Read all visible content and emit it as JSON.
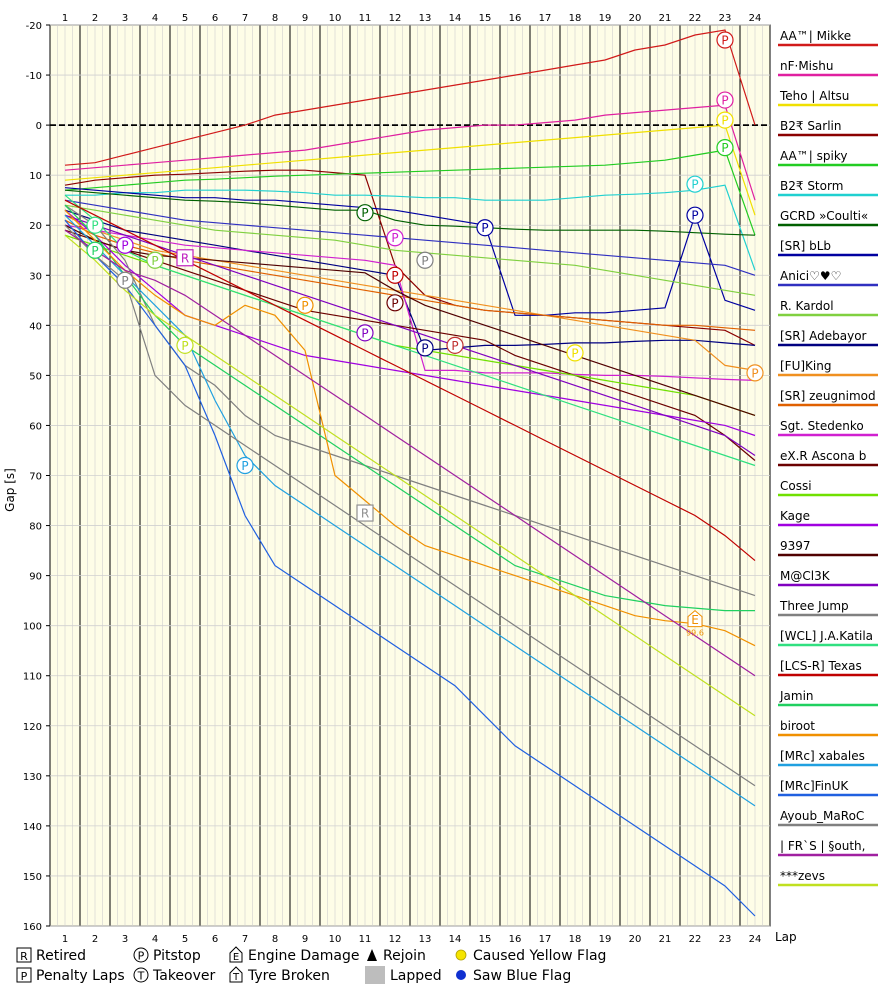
{
  "chart_data": {
    "type": "line",
    "title": "",
    "xlabel": "Lap",
    "ylabel": "Gap [s]",
    "x": [
      1,
      2,
      3,
      4,
      5,
      6,
      7,
      8,
      9,
      10,
      11,
      12,
      13,
      14,
      15,
      16,
      17,
      18,
      19,
      20,
      21,
      22,
      23,
      24
    ],
    "x_ticks": [
      "1",
      "2",
      "3",
      "4",
      "5",
      "6",
      "7",
      "8",
      "9",
      "10",
      "11",
      "12",
      "13",
      "14",
      "15",
      "16",
      "17",
      "18",
      "19",
      "20",
      "21",
      "22",
      "23",
      "24"
    ],
    "ylim": [
      -20,
      160
    ],
    "y_ticks": [
      "-20",
      "-10",
      "0",
      "10",
      "20",
      "30",
      "40",
      "50",
      "60",
      "70",
      "80",
      "90",
      "100",
      "110",
      "120",
      "130",
      "140",
      "150",
      "160"
    ],
    "series": [
      {
        "name": "AA™| Mikke",
        "color": "#d11a1a",
        "values": [
          8,
          7.5,
          6,
          4.5,
          3,
          1.5,
          0,
          -2,
          -3,
          -4,
          -5,
          -6,
          -7,
          -8,
          -9,
          -10,
          -11,
          -12,
          -13,
          -15,
          -16,
          -18,
          -19,
          0
        ]
      },
      {
        "name": "nF·Mishu",
        "color": "#e020a0",
        "values": [
          9,
          8.5,
          8,
          7.5,
          7,
          6.5,
          6,
          5.5,
          5,
          4,
          3,
          2,
          1,
          0.5,
          0,
          0,
          -0.5,
          -1,
          -2,
          -2.5,
          -3,
          -3.5,
          -4,
          15
        ]
      },
      {
        "name": "Teho | Altsu",
        "color": "#f0e000",
        "values": [
          11,
          10.5,
          10,
          9.5,
          9,
          8.5,
          8,
          7.5,
          7,
          6.5,
          6,
          5.5,
          5,
          4.5,
          4,
          3.5,
          3,
          2.5,
          2,
          1.5,
          1,
          0.5,
          0,
          18
        ]
      },
      {
        "name": "B2₹ Sarlin",
        "color": "#8b0000",
        "values": [
          12,
          11,
          10.5,
          10,
          9.8,
          9.5,
          9.2,
          9,
          9,
          9.5,
          10,
          28,
          34,
          36,
          37,
          37.5,
          38,
          38.5,
          39,
          39.5,
          40,
          40.5,
          41,
          44
        ]
      },
      {
        "name": "AA™| spiky",
        "color": "#22cc22",
        "values": [
          13,
          12.5,
          12,
          11.5,
          11,
          10.8,
          10.5,
          10.2,
          10,
          9.8,
          9.6,
          9.4,
          9.2,
          9,
          8.8,
          8.6,
          8.4,
          8.2,
          8,
          7.5,
          7,
          6,
          5,
          22
        ]
      },
      {
        "name": "B2₹ Storm",
        "color": "#20d0d0",
        "values": [
          14,
          14,
          13.5,
          13.5,
          13,
          13,
          13,
          13.2,
          13.5,
          14,
          14,
          14.2,
          14.5,
          14.5,
          15,
          15,
          15,
          14.5,
          14,
          13.8,
          13.5,
          13,
          12,
          29
        ]
      },
      {
        "name": "GCRD »Coulti«",
        "color": "#006000",
        "values": [
          13,
          13.5,
          14,
          14.5,
          15,
          15.2,
          15.5,
          16,
          16.5,
          17,
          17,
          19,
          20,
          20.2,
          20.5,
          20.8,
          21,
          21,
          21,
          21,
          21.2,
          21.5,
          21.8,
          22
        ]
      },
      {
        "name": "[SR] bLb",
        "color": "#0000a0",
        "values": [
          12.5,
          13,
          13.5,
          14,
          14.5,
          14.5,
          15,
          15,
          15.5,
          16,
          16.5,
          17,
          18,
          19,
          20,
          38,
          38,
          37.5,
          37.5,
          37,
          36.5,
          18,
          35,
          37
        ]
      },
      {
        "name": "Anici♡♥♡",
        "color": "#3030c0",
        "values": [
          15,
          16,
          17,
          18,
          19,
          19.5,
          20,
          20.5,
          21,
          21.5,
          22,
          22.5,
          23,
          23.5,
          24,
          24.5,
          25,
          25.5,
          26,
          26.5,
          27,
          27.5,
          28,
          30
        ]
      },
      {
        "name": "R. Kardol",
        "color": "#80d040",
        "values": [
          16,
          17,
          18,
          19,
          20,
          21,
          21.5,
          22,
          22.5,
          23,
          24,
          25,
          25.5,
          26,
          26.5,
          27,
          27.5,
          28,
          29,
          30,
          31,
          32,
          33,
          34
        ]
      },
      {
        "name": "[SR] Adebayor",
        "color": "#000080",
        "values": [
          17,
          19,
          21,
          22,
          23,
          24,
          25,
          26,
          27,
          28,
          29,
          30,
          45,
          44.5,
          44,
          44,
          43.8,
          43.5,
          43.5,
          43.2,
          43,
          43,
          43.5,
          44
        ]
      },
      {
        "name": "[FU]King",
        "color": "#f09020",
        "values": [
          18,
          21,
          23,
          25,
          26,
          27,
          28,
          29,
          30,
          31,
          32,
          33,
          34,
          35,
          36,
          37,
          38,
          39,
          40,
          41,
          42,
          43,
          48,
          49
        ]
      },
      {
        "name": "[SR] zeugnimod",
        "color": "#e06000",
        "values": [
          19,
          22,
          24,
          25.5,
          27,
          28,
          29,
          30,
          31,
          32,
          33,
          34,
          35,
          36,
          37,
          37.5,
          38,
          38.5,
          39,
          39.5,
          40,
          40,
          40.5,
          41
        ]
      },
      {
        "name": "Sgt. Stedenko",
        "color": "#d020d0",
        "values": [
          20,
          21,
          22,
          23,
          24,
          24.5,
          25,
          25.5,
          26,
          26.5,
          27,
          28,
          49,
          49,
          49.5,
          49.5,
          49.5,
          49.8,
          50,
          50,
          50.2,
          50.5,
          50.8,
          51
        ]
      },
      {
        "name": "eX.R Ascona b",
        "color": "#6b0000",
        "values": [
          21,
          23,
          25,
          27,
          29,
          31,
          33,
          35,
          37,
          38,
          39,
          40,
          41,
          42,
          43,
          46,
          48,
          50,
          52,
          54,
          56,
          58,
          62,
          67
        ]
      },
      {
        "name": "Cossi",
        "color": "#70e000",
        "values": [
          22,
          24,
          26,
          28,
          30,
          32,
          34,
          36,
          38,
          40,
          42,
          44,
          45,
          46,
          47,
          48,
          49,
          50,
          51,
          52,
          53,
          54,
          56,
          58
        ]
      },
      {
        "name": "Kage",
        "color": "#a000e0",
        "values": [
          17,
          22,
          28,
          33,
          38,
          40,
          42,
          44,
          46,
          47,
          48,
          49,
          50,
          51,
          52,
          53,
          54,
          55,
          56,
          57,
          58,
          59,
          60,
          62
        ]
      },
      {
        "name": "9397",
        "color": "#500000",
        "values": [
          20,
          23,
          25,
          26,
          26.5,
          27,
          27.5,
          28,
          28.5,
          29,
          29.5,
          33,
          36,
          38,
          40,
          42,
          44,
          46,
          48,
          50,
          52,
          54,
          56,
          58
        ]
      },
      {
        "name": "M@Cl3K",
        "color": "#8000c0",
        "values": [
          18,
          20,
          22,
          24,
          26,
          28,
          30,
          32,
          34,
          36,
          38,
          40,
          42,
          44,
          46,
          48,
          50,
          52,
          54,
          56,
          58,
          60,
          62,
          66
        ]
      },
      {
        "name": "Three Jump",
        "color": "#808080",
        "values": [
          16,
          20,
          27,
          40,
          48,
          52,
          58,
          62,
          64,
          66,
          68,
          70,
          72,
          74,
          76,
          78,
          80,
          82,
          84,
          86,
          88,
          90,
          92,
          94
        ]
      },
      {
        "name": "[WCL] J.A.Katila",
        "color": "#30e080",
        "values": [
          14,
          19,
          25,
          28,
          30,
          32,
          34,
          36,
          38,
          40,
          42,
          44,
          46,
          48,
          50,
          52,
          54,
          56,
          58,
          60,
          62,
          64,
          66,
          68
        ]
      },
      {
        "name": "[LCS-R] Texas",
        "color": "#c00000",
        "values": [
          15,
          18,
          21,
          24,
          27,
          30,
          33,
          36,
          39,
          42,
          45,
          48,
          51,
          54,
          57,
          60,
          63,
          66,
          69,
          72,
          75,
          78,
          82,
          87
        ]
      },
      {
        "name": "Jamin",
        "color": "#20d060",
        "values": [
          16,
          22,
          30,
          38,
          44,
          48,
          52,
          56,
          60,
          64,
          68,
          72,
          76,
          80,
          84,
          88,
          90,
          92,
          94,
          95,
          96,
          96.5,
          97,
          97
        ]
      },
      {
        "name": "biroot",
        "color": "#f09000",
        "values": [
          17,
          23,
          29,
          34,
          38,
          40,
          36,
          38,
          45,
          70,
          75,
          80,
          84,
          86,
          88,
          90,
          92,
          94,
          96,
          98,
          99,
          99.6,
          101,
          104
        ]
      },
      {
        "name": "[MRc] xabales",
        "color": "#20a0e0",
        "values": [
          18,
          24,
          30,
          36,
          42,
          55,
          66,
          72,
          76,
          80,
          84,
          88,
          92,
          96,
          100,
          104,
          108,
          112,
          116,
          120,
          124,
          128,
          132,
          136
        ]
      },
      {
        "name": "[MRc]FinUK",
        "color": "#2060e0",
        "values": [
          19,
          26,
          32,
          40,
          48,
          62,
          78,
          88,
          92,
          96,
          100,
          104,
          108,
          112,
          118,
          124,
          128,
          132,
          136,
          140,
          144,
          148,
          152,
          158
        ]
      },
      {
        "name": "Ayoub_MaRoC",
        "color": "#808080",
        "values": [
          20,
          26,
          31,
          50,
          56,
          60,
          64,
          68,
          72,
          76,
          80,
          84,
          88,
          92,
          96,
          100,
          104,
          108,
          112,
          116,
          120,
          124,
          128,
          132
        ]
      },
      {
        "name": "| FR`S | §outh,",
        "color": "#a020a0",
        "values": [
          21,
          25,
          29,
          31,
          34,
          38,
          42,
          46,
          50,
          54,
          58,
          62,
          66,
          70,
          74,
          78,
          82,
          86,
          90,
          94,
          98,
          102,
          106,
          110
        ]
      },
      {
        "name": "***zevs",
        "color": "#c0e020",
        "values": [
          22,
          27,
          33,
          38,
          42,
          46,
          50,
          54,
          58,
          62,
          66,
          70,
          74,
          78,
          82,
          86,
          90,
          94,
          98,
          102,
          106,
          110,
          114,
          118
        ]
      }
    ],
    "annotations": [
      {
        "lap": 23,
        "gap": -17,
        "symbol": "P",
        "series": "AA™| Mikke",
        "color": "#d11a1a"
      },
      {
        "lap": 23,
        "gap": -5,
        "symbol": "P",
        "series": "nF·Mishu",
        "color": "#e020a0"
      },
      {
        "lap": 23,
        "gap": -1,
        "symbol": "P",
        "series": "Teho | Altsu",
        "color": "#f0e000"
      },
      {
        "lap": 23,
        "gap": 4.5,
        "symbol": "P",
        "series": "AA™| spiky",
        "color": "#22cc22"
      },
      {
        "lap": 22,
        "gap": 11.8,
        "symbol": "P",
        "series": "B2₹ Storm",
        "color": "#20d0d0"
      },
      {
        "lap": 22,
        "gap": 18,
        "symbol": "P",
        "series": "[SR] bLb",
        "color": "#0000a0"
      },
      {
        "lap": 15,
        "gap": 20.5,
        "symbol": "P",
        "series": "[SR] bLb",
        "color": "#0000a0"
      },
      {
        "lap": 11,
        "gap": 17.5,
        "symbol": "P",
        "series": "GCRD »Coulti«",
        "color": "#006000"
      },
      {
        "lap": 12,
        "gap": 22.5,
        "symbol": "P",
        "series": "Sgt. Stedenko",
        "color": "#d020d0"
      },
      {
        "lap": 12,
        "gap": 30,
        "symbol": "P",
        "series": "[LCS-R] Texas",
        "color": "#c00000"
      },
      {
        "lap": 13,
        "gap": 27,
        "symbol": "P",
        "series": "Ayoub_MaRoC",
        "color": "#808080"
      },
      {
        "lap": 12,
        "gap": 35.5,
        "symbol": "P",
        "series": "eX.R Ascona b",
        "color": "#6b0000"
      },
      {
        "lap": 11,
        "gap": 41.5,
        "symbol": "P",
        "series": "M@Cl3K",
        "color": "#8000c0"
      },
      {
        "lap": 13,
        "gap": 44.5,
        "symbol": "P",
        "series": "[SR] Adebayor",
        "color": "#000080"
      },
      {
        "lap": 14,
        "gap": 44,
        "symbol": "P",
        "series": "eX.R Ascona b",
        "color": "#c03030"
      },
      {
        "lap": 18,
        "gap": 45.5,
        "symbol": "P",
        "series": "[FU]King",
        "color": "#f0e000"
      },
      {
        "lap": 24,
        "gap": 49.5,
        "symbol": "P",
        "series": "[FU]King",
        "color": "#f09020"
      },
      {
        "lap": 9,
        "gap": 36,
        "symbol": "P",
        "series": "biroot",
        "color": "#f09000"
      },
      {
        "lap": 3,
        "gap": 24,
        "symbol": "P",
        "series": "Kage",
        "color": "#a000e0"
      },
      {
        "lap": 3,
        "gap": 31,
        "symbol": "P",
        "series": "Three Jump",
        "color": "#808080"
      },
      {
        "lap": 2,
        "gap": 20,
        "symbol": "P",
        "series": "[WCL] J.A.Katila",
        "color": "#30e080"
      },
      {
        "lap": 2,
        "gap": 25,
        "symbol": "P",
        "series": "Jamin",
        "color": "#20d060"
      },
      {
        "lap": 4,
        "gap": 27,
        "symbol": "P",
        "series": "R. Kardol",
        "color": "#80d040"
      },
      {
        "lap": 5,
        "gap": 44,
        "symbol": "P",
        "series": "***zevs",
        "color": "#c0e020"
      },
      {
        "lap": 7,
        "gap": 68,
        "symbol": "P",
        "series": "[MRc] xabales",
        "color": "#20a0e0"
      },
      {
        "lap": 5,
        "gap": 26.5,
        "symbol": "R",
        "series": "| FR`S | §outh,",
        "color": "#c020c0"
      },
      {
        "lap": 11,
        "gap": 77.5,
        "symbol": "R",
        "series": "Ayoub_MaRoC",
        "color": "#909090"
      },
      {
        "lap": 22,
        "gap": 98.8,
        "symbol": "E",
        "series": "biroot",
        "color": "#f09000",
        "label": "99.6"
      }
    ],
    "legend_position": "right"
  },
  "legend_bottom": {
    "items": [
      {
        "symbol": "R",
        "label": "Retired",
        "name": "retired"
      },
      {
        "symbol": "P",
        "label": "Pitstop",
        "name": "pitstop"
      },
      {
        "symbol": "E",
        "label": "Engine Damage",
        "name": "engine-damage"
      },
      {
        "symbol": "triangle",
        "label": "Rejoin",
        "name": "rejoin"
      },
      {
        "symbol": "yellow-dot",
        "label": "Caused Yellow Flag",
        "name": "caused-yellow-flag"
      },
      {
        "symbol": "P-box",
        "label": "Penalty Laps",
        "name": "penalty-laps"
      },
      {
        "symbol": "T",
        "label": "Takeover",
        "name": "takeover"
      },
      {
        "symbol": "T-house",
        "label": "Tyre Broken",
        "name": "tyre-broken"
      },
      {
        "symbol": "gray-box",
        "label": "Lapped",
        "name": "lapped"
      },
      {
        "symbol": "blue-dot",
        "label": "Saw Blue Flag",
        "name": "saw-blue-flag"
      }
    ]
  }
}
